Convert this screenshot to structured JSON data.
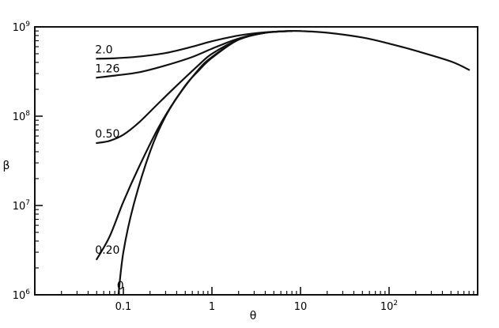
{
  "chart_data": {
    "type": "line",
    "xlabel": "θ",
    "ylabel": "β",
    "xscale": "log",
    "yscale": "log",
    "xlim": [
      0.01,
      1000
    ],
    "ylim": [
      1000000,
      1000000000
    ],
    "grid": false,
    "legend": "none",
    "x_ticks": [
      {
        "value": 0.1,
        "label": "0.1"
      },
      {
        "value": 1,
        "label": "1"
      },
      {
        "value": 10,
        "label": "10"
      },
      {
        "value": 100,
        "label": "10",
        "exp": "2"
      }
    ],
    "y_ticks": [
      {
        "value": 1000000,
        "label": "10",
        "exp": "6"
      },
      {
        "value": 10000000,
        "label": "10",
        "exp": "7"
      },
      {
        "value": 100000000,
        "label": "10",
        "exp": "8"
      },
      {
        "value": 1000000000,
        "label": "10",
        "exp": "9"
      }
    ],
    "series": [
      {
        "name": "2.0",
        "x": [
          0.05,
          0.08,
          0.15,
          0.3,
          0.6,
          1,
          2,
          4,
          8
        ],
        "y": [
          440000000,
          445000000,
          465000000,
          510000000,
          600000000,
          690000000,
          800000000,
          870000000,
          900000000
        ]
      },
      {
        "name": "1.26",
        "x": [
          0.05,
          0.08,
          0.15,
          0.3,
          0.6,
          1,
          2,
          4,
          8
        ],
        "y": [
          270000000,
          285000000,
          310000000,
          370000000,
          460000000,
          570000000,
          740000000,
          860000000,
          900000000
        ]
      },
      {
        "name": "0.50",
        "x": [
          0.05,
          0.07,
          0.1,
          0.15,
          0.25,
          0.4,
          0.7,
          1,
          2,
          4,
          8
        ],
        "y": [
          50000000,
          53000000,
          62000000,
          85000000,
          140000000,
          220000000,
          370000000,
          500000000,
          720000000,
          860000000,
          900000000
        ]
      },
      {
        "name": "0.20",
        "x": [
          0.05,
          0.07,
          0.1,
          0.15,
          0.25,
          0.4,
          0.7,
          1,
          2,
          4,
          8
        ],
        "y": [
          2500000,
          4500000,
          11000000,
          27000000,
          75000000,
          160000000,
          330000000,
          460000000,
          720000000,
          860000000,
          900000000
        ]
      },
      {
        "name": "0",
        "x": [
          0.088,
          0.1,
          0.13,
          0.2,
          0.3,
          0.5,
          0.7,
          1,
          2,
          4,
          8
        ],
        "y": [
          1000000,
          3000000,
          10000000,
          40000000,
          100000000,
          220000000,
          320000000,
          450000000,
          720000000,
          860000000,
          900000000
        ]
      },
      {
        "name": "",
        "x": [
          8,
          10,
          20,
          50,
          100,
          200,
          500,
          800
        ],
        "y": [
          900000000,
          898000000,
          860000000,
          760000000,
          650000000,
          540000000,
          410000000,
          330000000
        ]
      }
    ]
  }
}
